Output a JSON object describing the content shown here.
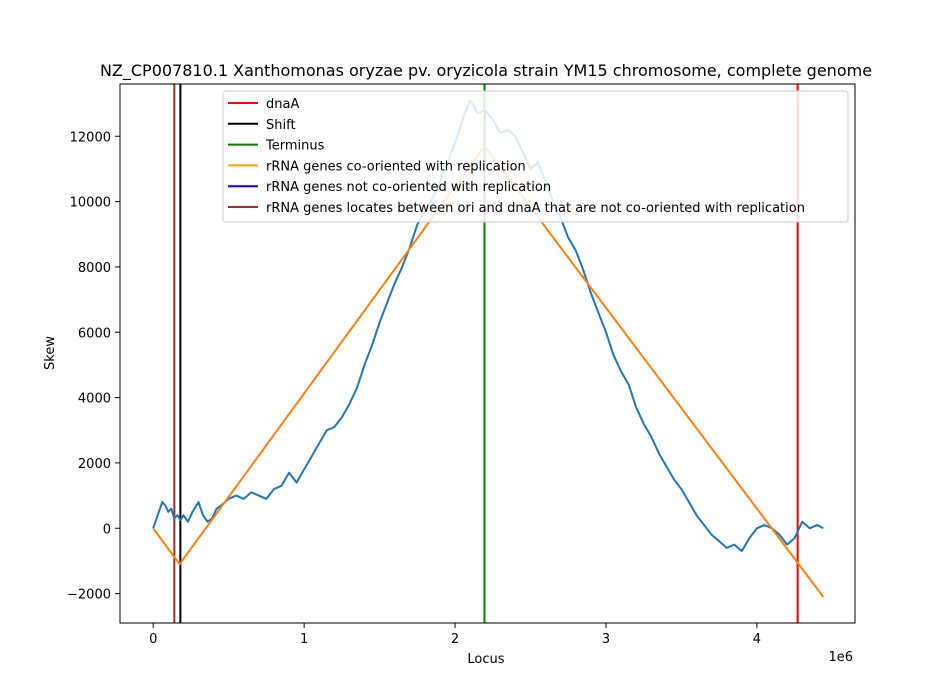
{
  "chart_data": {
    "type": "line",
    "title": "NZ_CP007810.1 Xanthomonas oryzae pv. oryzicola strain YM15 chromosome, complete genome",
    "xlabel": "Locus",
    "ylabel": "Skew",
    "x_offset_label": "1e6",
    "xlim": [
      -220000,
      4650000
    ],
    "ylim": [
      -2900,
      13600
    ],
    "x_ticks": [
      0,
      1000000,
      2000000,
      3000000,
      4000000
    ],
    "x_tick_labels": [
      "0",
      "1",
      "2",
      "3",
      "4"
    ],
    "y_ticks": [
      -2000,
      0,
      2000,
      4000,
      6000,
      8000,
      10000,
      12000
    ],
    "y_tick_labels": [
      "−2000",
      "0",
      "2000",
      "4000",
      "6000",
      "8000",
      "10000",
      "12000"
    ],
    "legend_position": "top-right",
    "legend": [
      {
        "label": "dnaA",
        "color": "#ff0000"
      },
      {
        "label": "Shift",
        "color": "#000000"
      },
      {
        "label": "Terminus",
        "color": "#008000"
      },
      {
        "label": "rRNA genes co-oriented with replication",
        "color": "#ffa500"
      },
      {
        "label": "rRNA genes not co-oriented with replication",
        "color": "#0000ff"
      },
      {
        "label": "rRNA genes locates between ori and dnaA that are not co-oriented with replication",
        "color": "#a52a2a"
      }
    ],
    "vertical_lines": [
      {
        "x": 140000,
        "color": "#a52a2a"
      },
      {
        "x": 180000,
        "color": "#000000"
      },
      {
        "x": 2195000,
        "color": "#008000"
      },
      {
        "x": 4270000,
        "color": "#ff0000"
      }
    ],
    "series": [
      {
        "color": "#1f77b4",
        "x": [
          0,
          30000,
          60000,
          80000,
          100000,
          120000,
          140000,
          160000,
          180000,
          200000,
          230000,
          260000,
          300000,
          330000,
          360000,
          390000,
          420000,
          450000,
          500000,
          550000,
          600000,
          650000,
          700000,
          750000,
          800000,
          850000,
          900000,
          950000,
          1000000,
          1050000,
          1100000,
          1150000,
          1200000,
          1250000,
          1300000,
          1350000,
          1400000,
          1450000,
          1500000,
          1550000,
          1600000,
          1650000,
          1700000,
          1750000,
          1800000,
          1850000,
          1900000,
          1950000,
          2000000,
          2050000,
          2100000,
          2150000,
          2200000,
          2250000,
          2300000,
          2350000,
          2400000,
          2450000,
          2500000,
          2550000,
          2600000,
          2650000,
          2700000,
          2750000,
          2800000,
          2850000,
          2900000,
          2950000,
          3000000,
          3050000,
          3100000,
          3150000,
          3200000,
          3250000,
          3300000,
          3350000,
          3400000,
          3450000,
          3500000,
          3550000,
          3600000,
          3650000,
          3700000,
          3750000,
          3800000,
          3850000,
          3900000,
          3950000,
          4000000,
          4050000,
          4100000,
          4150000,
          4200000,
          4250000,
          4300000,
          4350000,
          4400000,
          4440000
        ],
        "y": [
          0,
          400,
          800,
          700,
          500,
          600,
          300,
          400,
          250,
          400,
          200,
          500,
          800,
          400,
          200,
          300,
          600,
          700,
          900,
          1000,
          900,
          1100,
          1000,
          900,
          1200,
          1300,
          1700,
          1400,
          1800,
          2200,
          2600,
          3000,
          3100,
          3400,
          3800,
          4300,
          5000,
          5600,
          6300,
          6900,
          7500,
          8000,
          8600,
          9300,
          9700,
          10100,
          10600,
          11200,
          11800,
          12500,
          13100,
          12700,
          12800,
          12500,
          12100,
          12200,
          12000,
          11500,
          11000,
          11200,
          10600,
          10000,
          9500,
          8900,
          8500,
          7900,
          7200,
          6600,
          6000,
          5300,
          4800,
          4400,
          3700,
          3200,
          2800,
          2300,
          1900,
          1500,
          1200,
          800,
          400,
          100,
          -200,
          -400,
          -600,
          -500,
          -700,
          -300,
          0,
          100,
          0,
          -200,
          -500,
          -300,
          200,
          0,
          100,
          0
        ]
      },
      {
        "color": "#ff7f0e",
        "x": [
          0,
          175000,
          2195000,
          4440000
        ],
        "y": [
          0,
          -1100,
          11700,
          -2100
        ]
      }
    ]
  }
}
